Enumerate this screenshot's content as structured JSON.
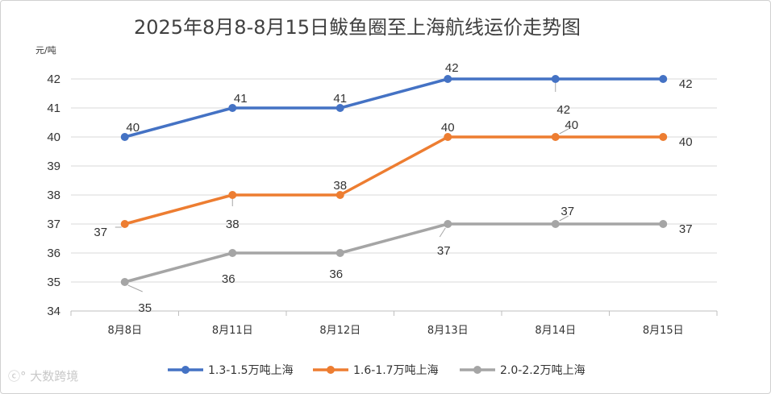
{
  "chart_data": {
    "type": "line",
    "title": "2025年8月8-8月15日鲅鱼圈至上海航线运价走势图",
    "ylabel": "元/吨",
    "xlabel": "",
    "categories": [
      "8月8日",
      "8月11日",
      "8月12日",
      "8月13日",
      "8月14日",
      "8月15日"
    ],
    "ylim": [
      34,
      42
    ],
    "yticks": [
      34,
      35,
      36,
      37,
      38,
      39,
      40,
      41,
      42
    ],
    "grid": true,
    "legend_position": "bottom",
    "series": [
      {
        "name": "1.3-1.5万吨上海",
        "color": "#4472C4",
        "values": [
          40,
          41,
          41,
          42,
          42,
          42
        ]
      },
      {
        "name": "1.6-1.7万吨上海",
        "color": "#ED7D31",
        "values": [
          37,
          38,
          38,
          40,
          40,
          40
        ]
      },
      {
        "name": "2.0-2.2万吨上海",
        "color": "#A5A5A5",
        "values": [
          35,
          36,
          36,
          37,
          37,
          37
        ]
      }
    ]
  },
  "watermark": "大数跨境"
}
